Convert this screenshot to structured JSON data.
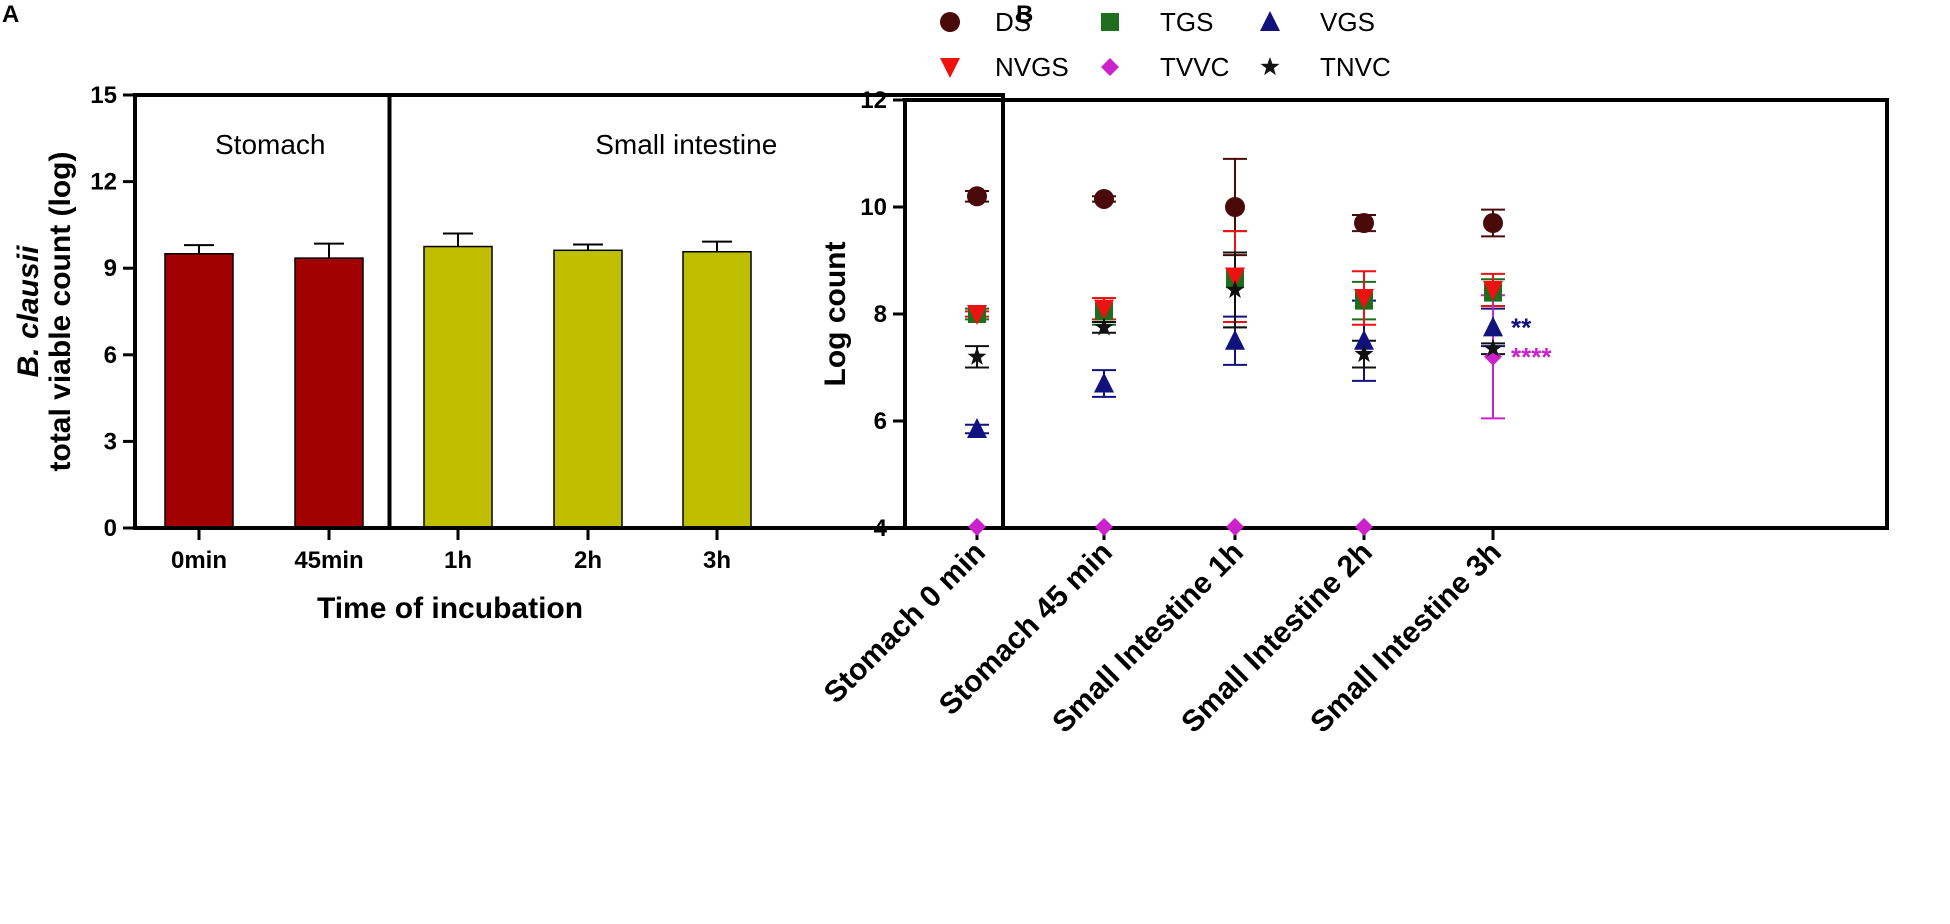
{
  "chart_data": [
    {
      "panel": "A",
      "type": "bar",
      "categories": [
        "0min",
        "45min",
        "1h",
        "2h",
        "3h"
      ],
      "values": [
        9.5,
        9.35,
        9.75,
        9.62,
        9.57
      ],
      "errors": [
        0.3,
        0.5,
        0.45,
        0.2,
        0.35
      ],
      "colors": [
        "#a00000",
        "#a00000",
        "#bfbf00",
        "#bfbf00",
        "#bfbf00"
      ],
      "xlabel": "Time of incubation",
      "ylabel_species": "B. clausii",
      "ylabel": "total viable count (log)",
      "ylim": [
        0,
        15
      ],
      "yticks": [
        "0",
        "3",
        "6",
        "9",
        "12",
        "15"
      ],
      "regions": [
        {
          "label": "Stomach",
          "categories": [
            "0min",
            "45min"
          ]
        },
        {
          "label": "Small intestine",
          "categories": [
            "1h",
            "2h",
            "3h"
          ]
        }
      ]
    },
    {
      "panel": "B",
      "type": "scatter",
      "categories": [
        "Stomach 0 min",
        "Stomach 45 min",
        "Small Intestine 1h",
        "Small Intestine 2h",
        "Small Intestine 3h"
      ],
      "ylabel": "Log count",
      "ylim": [
        4,
        12
      ],
      "yticks": [
        "4",
        "6",
        "8",
        "10",
        "12"
      ],
      "series": [
        {
          "name": "DS",
          "marker": "circle",
          "color": "#4a0a0a",
          "values": [
            10.2,
            10.15,
            10.0,
            9.7,
            9.7
          ],
          "errors": [
            0.1,
            0.05,
            0.9,
            0.15,
            0.25
          ]
        },
        {
          "name": "TGS",
          "marker": "square",
          "color": "#1e6e1e",
          "values": [
            8.0,
            8.05,
            8.65,
            8.25,
            8.4
          ],
          "errors": [
            0.1,
            0.25,
            0.9,
            0.35,
            0.25
          ]
        },
        {
          "name": "VGS",
          "marker": "triangle-up",
          "color": "#12127e",
          "values": [
            5.85,
            6.7,
            7.5,
            7.5,
            7.75
          ],
          "errors": [
            0.08,
            0.25,
            0.45,
            0.75,
            0.35
          ]
        },
        {
          "name": "NVGS",
          "marker": "triangle-down",
          "color": "#ee1111",
          "values": [
            8.0,
            8.1,
            8.7,
            8.3,
            8.45
          ],
          "errors": [
            0.05,
            0.2,
            0.85,
            0.5,
            0.3
          ]
        },
        {
          "name": "TVVC",
          "marker": "diamond",
          "color": "#cc22cc",
          "values": [
            4.02,
            4.02,
            4.02,
            4.02,
            7.2
          ],
          "errors": [
            0,
            0,
            0,
            0,
            1.15
          ]
        },
        {
          "name": "TNVC",
          "marker": "star",
          "color": "#111111",
          "values": [
            7.2,
            7.75,
            8.45,
            7.25,
            7.35
          ],
          "errors": [
            0.2,
            0.1,
            0.7,
            0.25,
            0.1
          ]
        }
      ],
      "annotations": [
        {
          "text": "**",
          "category": "Small Intestine 3h",
          "y": 7.8,
          "color": "#12127e"
        },
        {
          "text": "****",
          "category": "Small Intestine 3h",
          "y": 7.25,
          "color": "#cc22cc"
        }
      ]
    }
  ]
}
